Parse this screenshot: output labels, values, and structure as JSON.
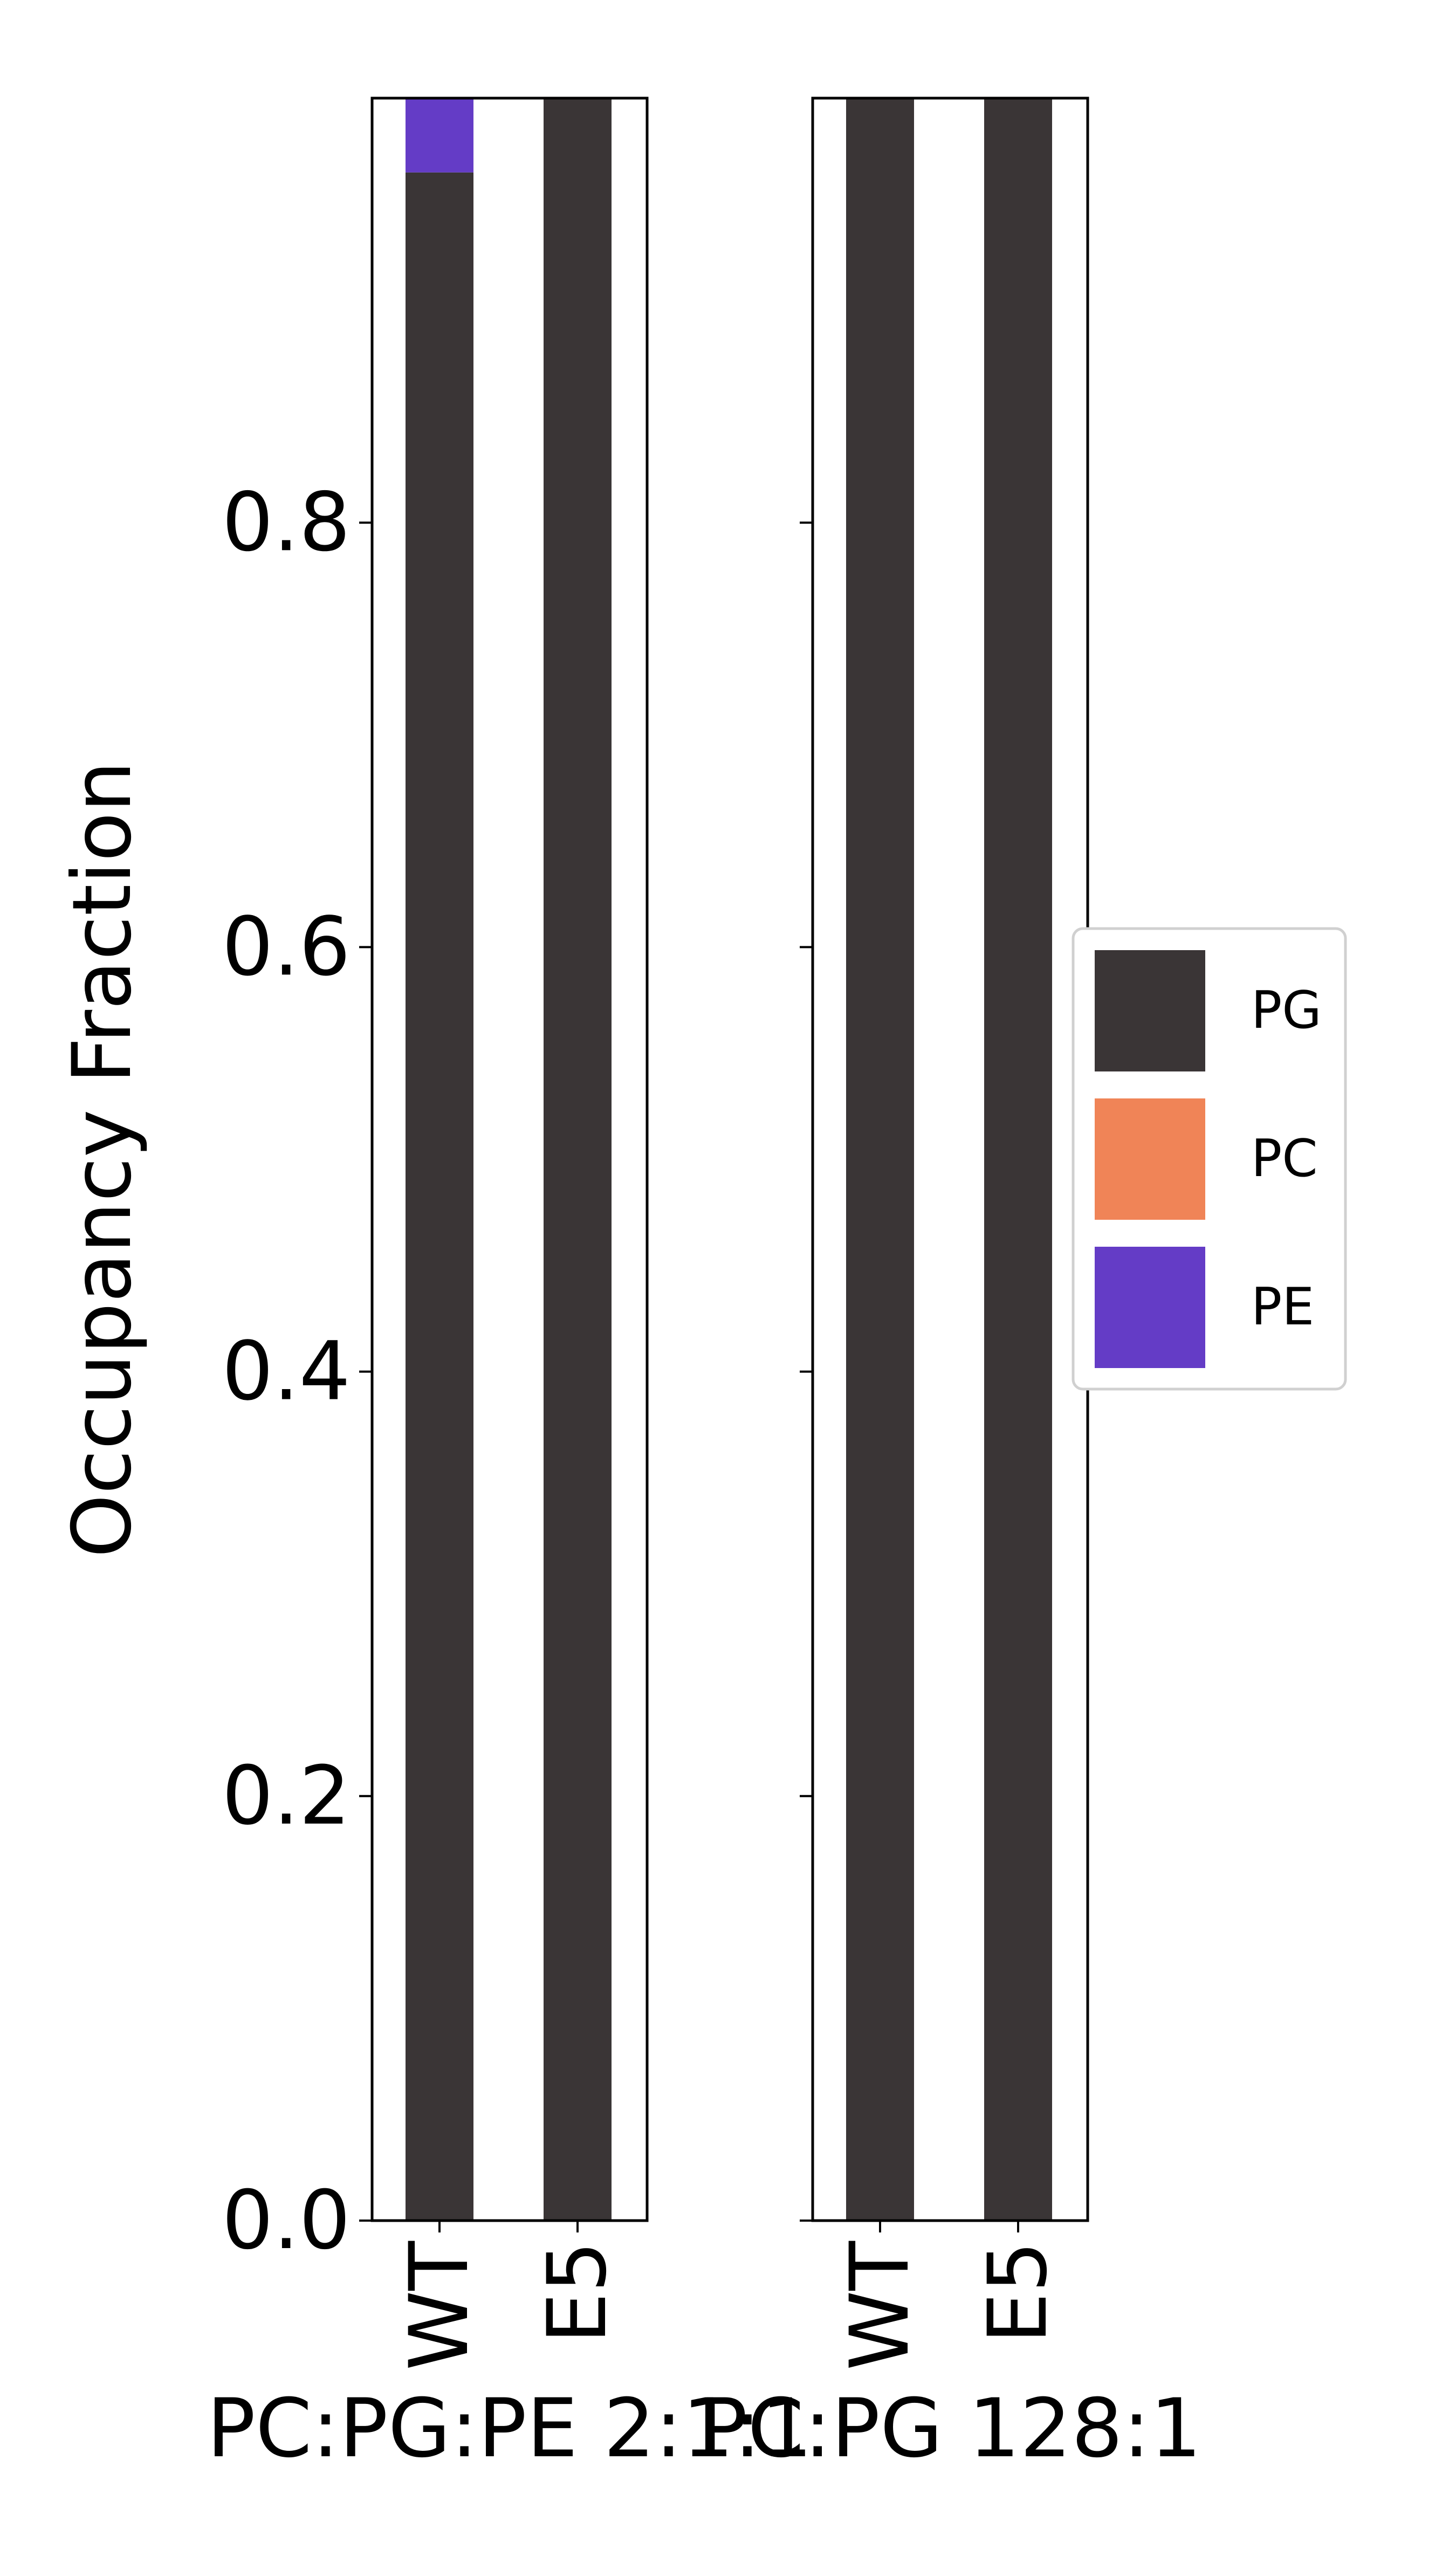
{
  "chart_data": {
    "type": "bar",
    "stacked": true,
    "ylabel": "Occupancy Fraction",
    "ylim": [
      0,
      1.0
    ],
    "yticks": [
      0.0,
      0.2,
      0.4,
      0.6,
      0.8
    ],
    "ytick_labels": [
      "0.0",
      "0.2",
      "0.4",
      "0.6",
      "0.8"
    ],
    "grid": false,
    "legend_position": "right",
    "legend": [
      {
        "label": "PG",
        "color": "#3a3536"
      },
      {
        "label": "PC",
        "color": "#f08457"
      },
      {
        "label": "PE",
        "color": "#643cc6"
      }
    ],
    "panels": [
      {
        "xlabel": "PC:PG:PE 2:1:1",
        "categories": [
          "WT",
          "E5"
        ],
        "series": [
          {
            "name": "PG",
            "values": [
              0.965,
              1.0
            ]
          },
          {
            "name": "PC",
            "values": [
              0.0,
              0.0
            ]
          },
          {
            "name": "PE",
            "values": [
              0.035,
              0.0
            ]
          }
        ]
      },
      {
        "xlabel": "PC:PG 128:1",
        "categories": [
          "WT",
          "E5"
        ],
        "series": [
          {
            "name": "PG",
            "values": [
              1.0,
              1.0
            ]
          },
          {
            "name": "PC",
            "values": [
              0.0,
              0.0
            ]
          },
          {
            "name": "PE",
            "values": [
              0.0,
              0.0
            ]
          }
        ]
      }
    ]
  }
}
